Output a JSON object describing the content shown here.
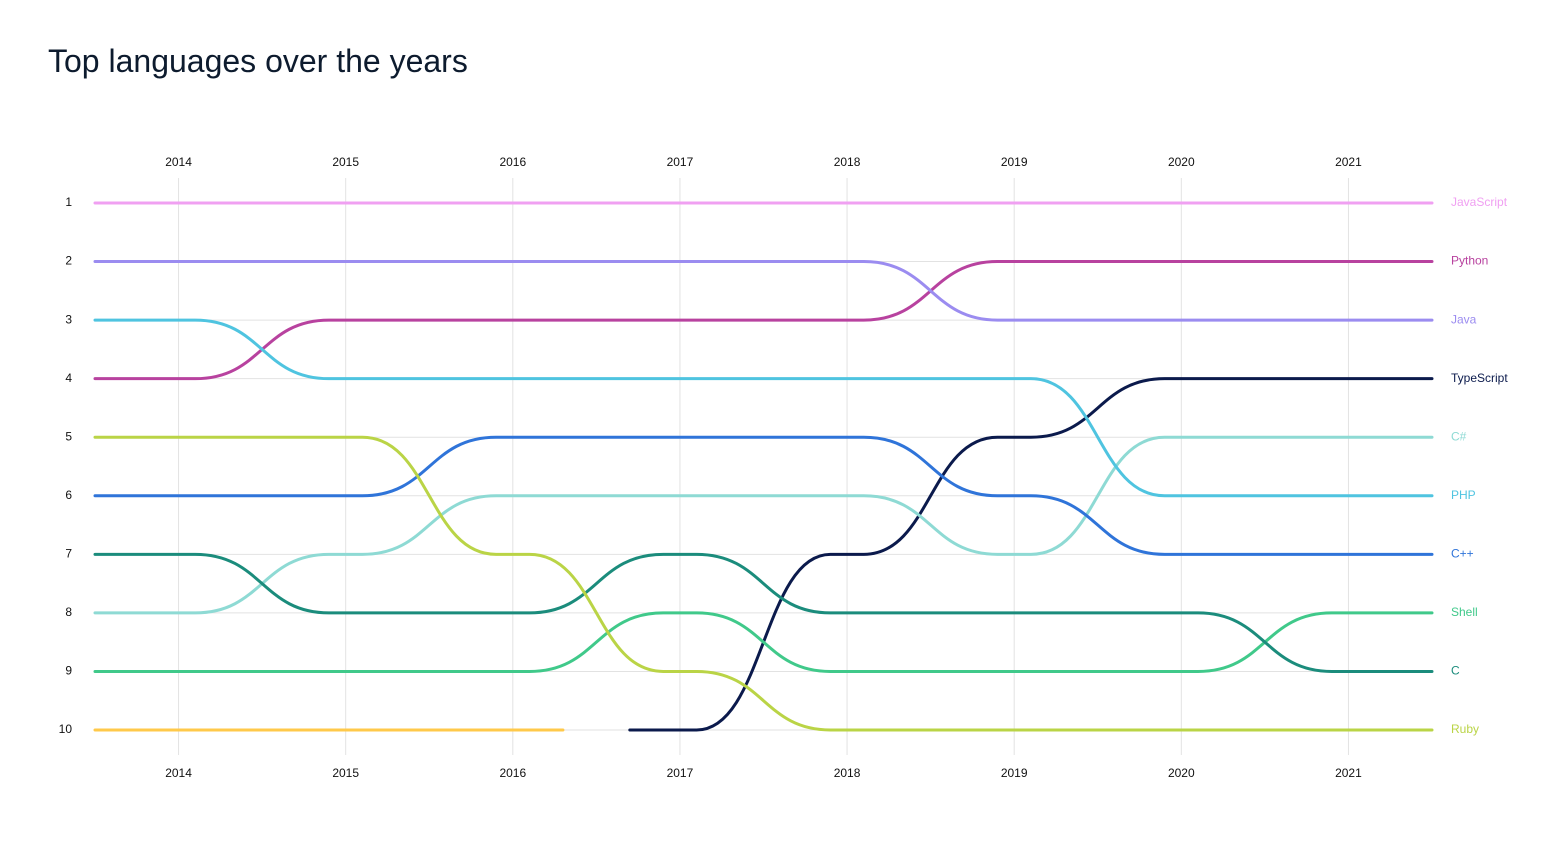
{
  "chart_data": {
    "type": "bump",
    "title": "Top languages over the years",
    "x": [
      2014,
      2015,
      2016,
      2017,
      2018,
      2019,
      2020,
      2021
    ],
    "xlim": [
      2013.5,
      2021.5
    ],
    "xticks": [
      2014,
      2015,
      2016,
      2017,
      2018,
      2019,
      2020,
      2021
    ],
    "ylim": [
      1,
      10
    ],
    "yticks": [
      1,
      2,
      3,
      4,
      5,
      6,
      7,
      8,
      9,
      10
    ],
    "y_reversed": true,
    "grid": true,
    "series": [
      {
        "name": "JavaScript",
        "color": "#f0a0f2",
        "values": [
          1,
          1,
          1,
          1,
          1,
          1,
          1,
          1
        ]
      },
      {
        "name": "Python",
        "color": "#b8429f",
        "values": [
          4,
          3,
          3,
          3,
          3,
          2,
          2,
          2
        ]
      },
      {
        "name": "Java",
        "color": "#9b8cf0",
        "values": [
          2,
          2,
          2,
          2,
          2,
          3,
          3,
          3
        ]
      },
      {
        "name": "TypeScript",
        "color": "#0b1a4c",
        "values": [
          null,
          null,
          null,
          10,
          7,
          5,
          4,
          4
        ]
      },
      {
        "name": "C#",
        "color": "#8edad4",
        "values": [
          8,
          7,
          6,
          6,
          6,
          7,
          5,
          5
        ]
      },
      {
        "name": "PHP",
        "color": "#4fc4e0",
        "values": [
          3,
          4,
          4,
          4,
          4,
          4,
          6,
          6
        ]
      },
      {
        "name": "C++",
        "color": "#2f74d9",
        "values": [
          6,
          6,
          5,
          5,
          5,
          6,
          7,
          7
        ]
      },
      {
        "name": "Shell",
        "color": "#40c98a",
        "values": [
          9,
          9,
          9,
          8,
          9,
          9,
          9,
          8
        ]
      },
      {
        "name": "C",
        "color": "#1b8c7c",
        "values": [
          7,
          8,
          8,
          7,
          8,
          8,
          8,
          9
        ]
      },
      {
        "name": "Ruby",
        "color": "#bad446",
        "values": [
          5,
          5,
          7,
          9,
          10,
          10,
          10,
          10
        ]
      },
      {
        "color": "#ffc94a",
        "values": [
          10,
          10,
          10,
          null,
          null,
          null,
          null,
          null
        ]
      }
    ]
  }
}
